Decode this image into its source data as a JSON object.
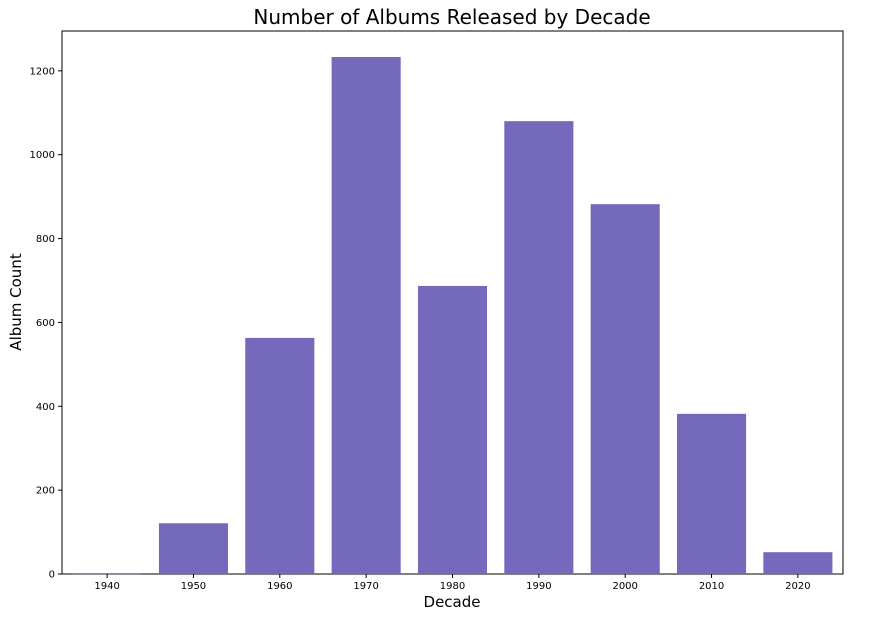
{
  "chart_data": {
    "type": "bar",
    "title": "Number of Albums Released by Decade",
    "xlabel": "Decade",
    "ylabel": "Album Count",
    "categories": [
      "1940",
      "1950",
      "1960",
      "1970",
      "1980",
      "1990",
      "2000",
      "2010",
      "2020"
    ],
    "values": [
      2,
      121,
      563,
      1233,
      687,
      1080,
      882,
      382,
      52
    ],
    "ylim": [
      0,
      1295
    ],
    "yticks": [
      0,
      200,
      400,
      600,
      800,
      1000,
      1200
    ],
    "grid": false,
    "legend": "none",
    "bar_color": "#7569be",
    "axis_color": "#000000",
    "background": "#ffffff"
  }
}
